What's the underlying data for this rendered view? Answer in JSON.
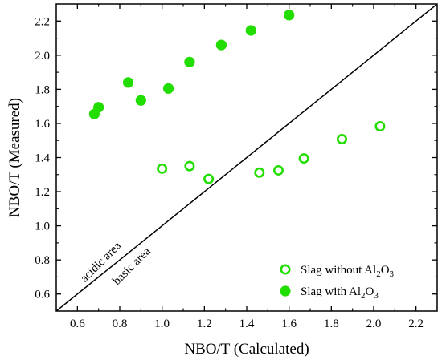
{
  "chart_data": {
    "type": "scatter",
    "xlabel": "NBO/T (Calculated)",
    "ylabel": "NBO/T (Measured)",
    "xlim": [
      0.5,
      2.3
    ],
    "ylim": [
      0.5,
      2.3
    ],
    "x_ticks": [
      "0.6",
      "0.8",
      "1.0",
      "1.2",
      "1.4",
      "1.6",
      "1.8",
      "2.0",
      "2.2"
    ],
    "y_ticks": [
      "0.6",
      "0.8",
      "1.0",
      "1.2",
      "1.4",
      "1.6",
      "1.8",
      "2.0",
      "2.2"
    ],
    "grid": false,
    "legend_position": "bottom-right",
    "accent_color": "#22dd00",
    "diagonal": {
      "from": [
        0.5,
        0.5
      ],
      "to": [
        2.3,
        2.3
      ]
    },
    "annotations": {
      "upper": "acidic area",
      "lower": "basic area"
    },
    "series": [
      {
        "name": "Slag without Al",
        "name_sub1": "2",
        "name_mid": "O",
        "name_sub2": "3",
        "marker": "open-circle",
        "x": [
          1.0,
          1.13,
          1.22,
          1.46,
          1.55,
          1.67,
          1.85,
          2.03
        ],
        "y": [
          1.335,
          1.35,
          1.275,
          1.312,
          1.325,
          1.395,
          1.508,
          1.583
        ]
      },
      {
        "name": "Slag with Al",
        "name_sub1": "2",
        "name_mid": "O",
        "name_sub2": "3",
        "marker": "filled-circle",
        "x": [
          0.68,
          0.7,
          0.84,
          0.9,
          1.03,
          1.13,
          1.28,
          1.42,
          1.6
        ],
        "y": [
          1.655,
          1.695,
          1.84,
          1.735,
          1.805,
          1.96,
          2.06,
          2.145,
          2.235
        ]
      }
    ]
  }
}
